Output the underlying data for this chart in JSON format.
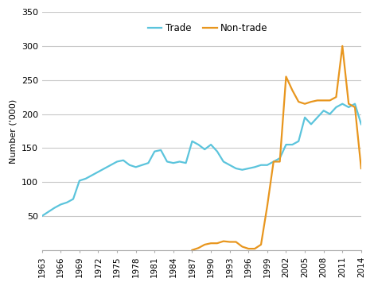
{
  "trade_years": [
    1963,
    1964,
    1965,
    1966,
    1967,
    1968,
    1969,
    1970,
    1971,
    1972,
    1973,
    1974,
    1975,
    1976,
    1977,
    1978,
    1979,
    1980,
    1981,
    1982,
    1983,
    1984,
    1985,
    1986,
    1987,
    1988,
    1989,
    1990,
    1991,
    1992,
    1993,
    1994,
    1995,
    1996,
    1997,
    1998,
    1999,
    2000,
    2001,
    2002,
    2003,
    2004,
    2005,
    2006,
    2007,
    2008,
    2009,
    2010,
    2011,
    2012,
    2013,
    2014
  ],
  "trade_values": [
    50,
    56,
    62,
    67,
    70,
    75,
    102,
    105,
    110,
    115,
    120,
    125,
    130,
    132,
    125,
    122,
    125,
    128,
    145,
    147,
    130,
    128,
    130,
    128,
    160,
    155,
    148,
    155,
    145,
    130,
    125,
    120,
    118,
    120,
    122,
    125,
    125,
    130,
    135,
    155,
    155,
    160,
    195,
    185,
    195,
    205,
    200,
    210,
    215,
    210,
    215,
    185
  ],
  "nontrade_years": [
    1987,
    1988,
    1989,
    1990,
    1991,
    1992,
    1993,
    1994,
    1995,
    1996,
    1997,
    1998,
    1999,
    2000,
    2001,
    2002,
    2003,
    2004,
    2005,
    2006,
    2007,
    2008,
    2009,
    2010,
    2011,
    2012,
    2013,
    2014
  ],
  "nontrade_values": [
    0,
    3,
    8,
    10,
    10,
    13,
    12,
    12,
    5,
    2,
    2,
    8,
    65,
    130,
    130,
    255,
    235,
    218,
    215,
    218,
    220,
    220,
    220,
    225,
    300,
    215,
    210,
    120
  ],
  "trade_color": "#5BC4DC",
  "nontrade_color": "#E8961E",
  "ylabel": "Number ('000)",
  "ylim": [
    0,
    350
  ],
  "yticks": [
    0,
    50,
    100,
    150,
    200,
    250,
    300,
    350
  ],
  "xtick_years": [
    1963,
    1966,
    1969,
    1972,
    1975,
    1978,
    1981,
    1984,
    1987,
    1990,
    1993,
    1996,
    1999,
    2002,
    2005,
    2008,
    2011,
    2014
  ],
  "legend_trade": "Trade",
  "legend_nontrade": "Non-trade",
  "background_color": "#ffffff",
  "grid_color": "#c8c8c8"
}
